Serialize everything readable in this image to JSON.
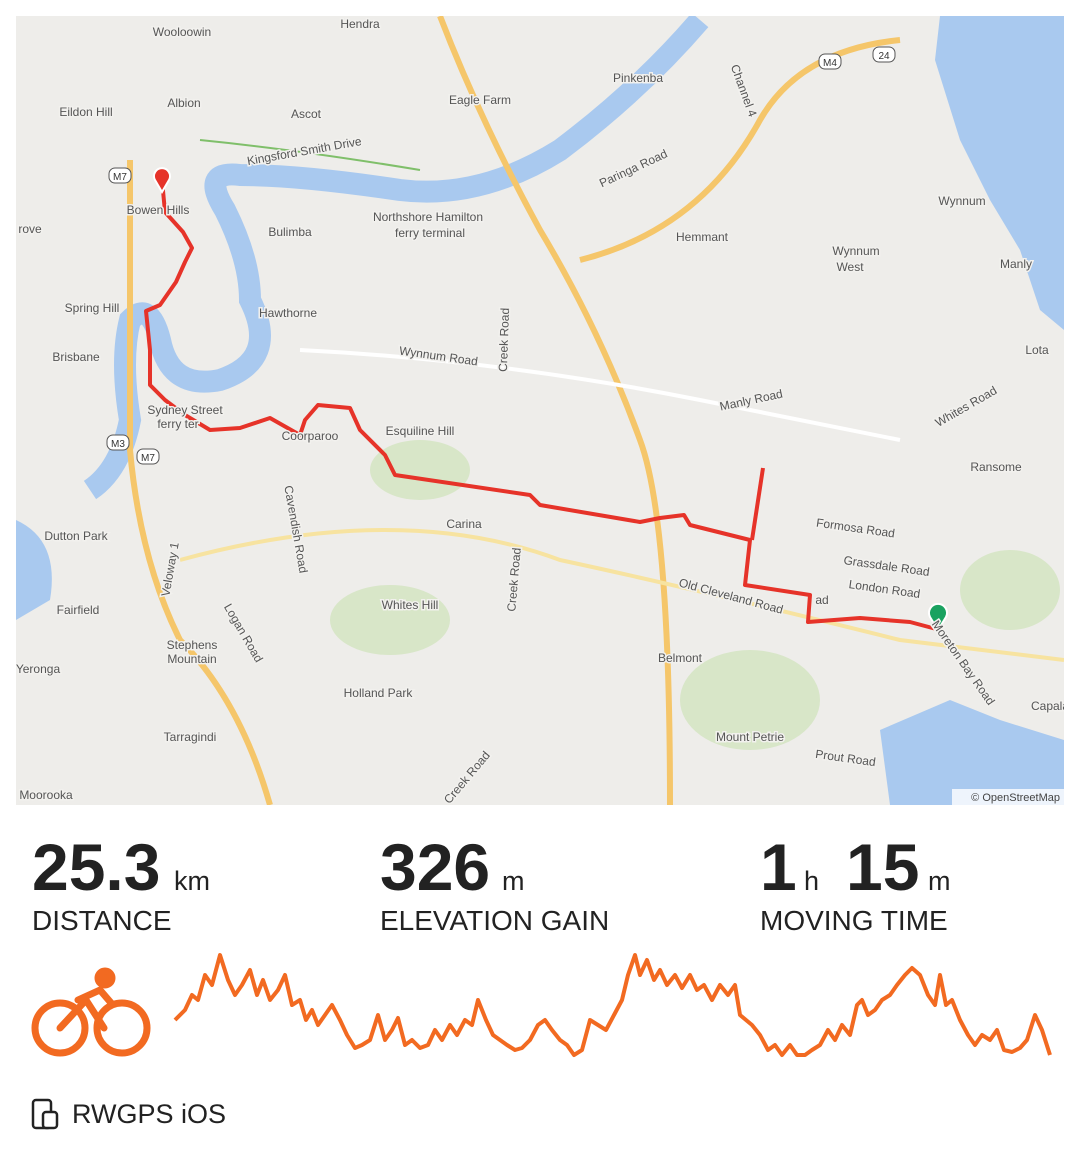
{
  "map": {
    "labels": [
      "Hendra",
      "Wooloowin",
      "Pinkenba",
      "Eagle Farm",
      "Eildon Hill",
      "Albion",
      "Ascot",
      "Kingsford Smith Drive",
      "Paringa Road",
      "Channel 4",
      "Bowen Hills",
      "Northshore Hamilton",
      "ferry terminal",
      "Bulimba",
      "Hemmant",
      "Wynnum",
      "Wynnum",
      "West",
      "Manly",
      "Spring Hill",
      "Hawthorne",
      "Creek Road",
      "Brisbane",
      "Wynnum Road",
      "Lota",
      "Manly Road",
      "Whites Road",
      "Sydney Street",
      "ferry ter",
      "Esquiline Hill",
      "Ransome",
      "Formosa Road",
      "Carina",
      "Dutton Park",
      "Cavendish Road",
      "Grassdale Road",
      "London Road",
      "Old Cleveland Road",
      "Fairfield",
      "Whites Hill",
      "Logan Road",
      "Stephens",
      "Mountain",
      "Yeronga",
      "Belmont",
      "Moreton Bay Road",
      "Holland Park",
      "Capala",
      "Mount Petrie",
      "Prout Road",
      "Tarragindi",
      "Moorooka",
      "Creek Road",
      "Veloway 1",
      "Creek Road",
      "rove",
      "Coorparoo",
      "ad"
    ],
    "shields": [
      "M7",
      "M3",
      "M7",
      "M4",
      "24"
    ],
    "attribution": "© OpenStreetMap"
  },
  "stats": [
    {
      "value": "25.3",
      "unit": "km",
      "label": "DISTANCE"
    },
    {
      "value": "326",
      "unit": "m",
      "label": "ELEVATION GAIN"
    },
    {
      "value": "1",
      "unit": "h",
      "value2": "15",
      "unit2": "m",
      "label": "MOVING TIME"
    }
  ],
  "device": "RWGPS iOS"
}
